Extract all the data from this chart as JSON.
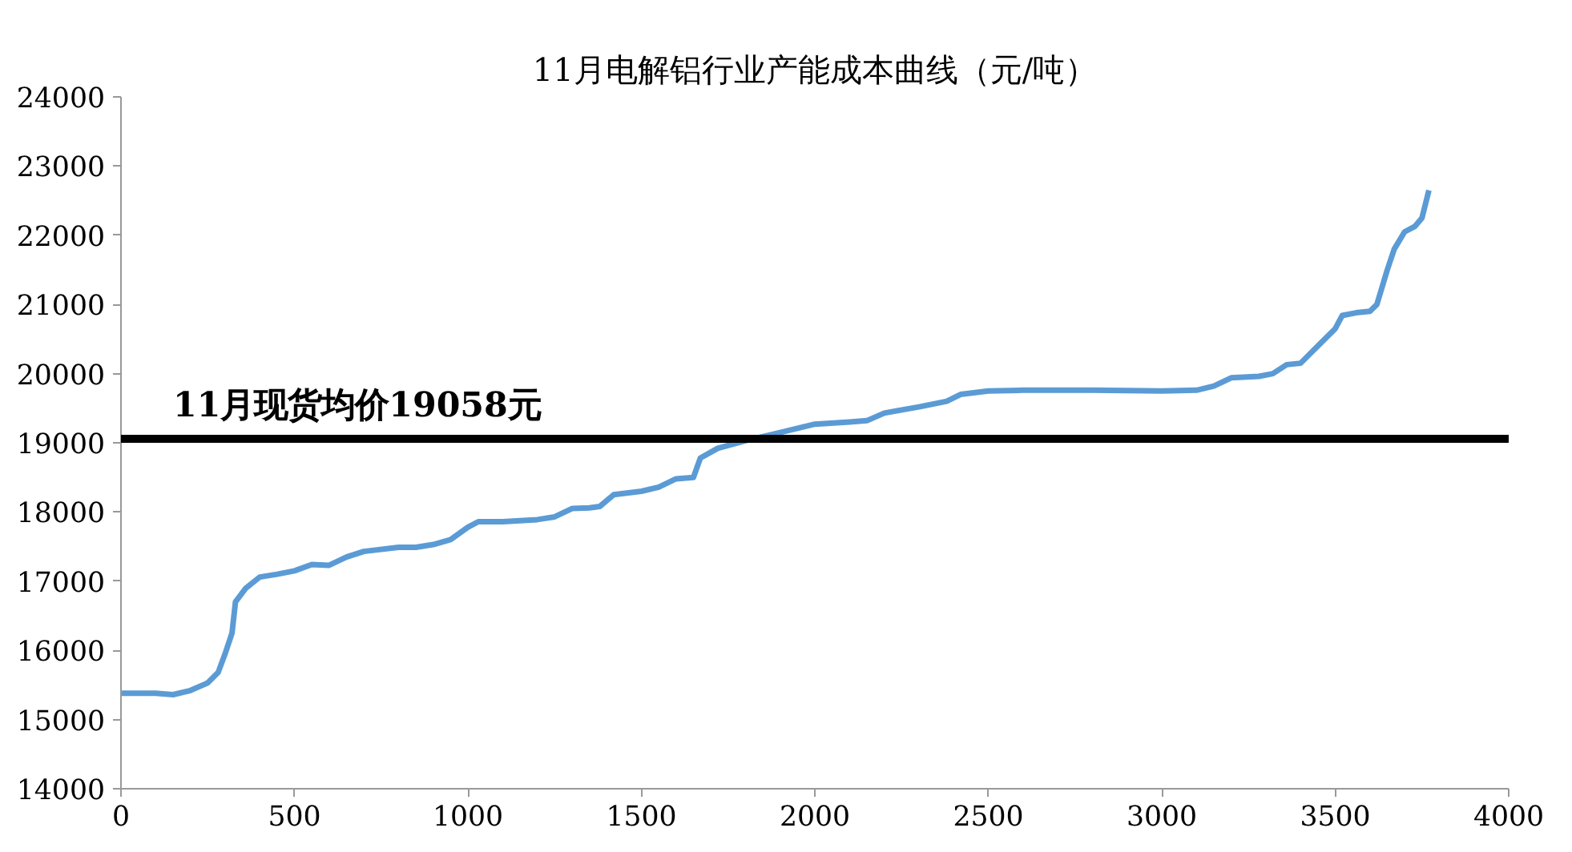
{
  "chart_data": {
    "type": "line",
    "title": "11月电解铝行业产能成本曲线（元/吨）",
    "series": [
      {
        "color": "#5b9bd5",
        "x": [
          0,
          100,
          150,
          200,
          250,
          280,
          300,
          320,
          330,
          360,
          400,
          450,
          500,
          550,
          600,
          650,
          700,
          800,
          850,
          900,
          950,
          1000,
          1030,
          1100,
          1200,
          1250,
          1300,
          1350,
          1380,
          1420,
          1500,
          1550,
          1600,
          1650,
          1670,
          1720,
          1800,
          1900,
          2000,
          2100,
          2150,
          2200,
          2300,
          2380,
          2420,
          2500,
          2600,
          2800,
          3000,
          3100,
          3150,
          3200,
          3280,
          3320,
          3360,
          3400,
          3450,
          3500,
          3520,
          3560,
          3600,
          3620,
          3650,
          3670,
          3700,
          3730,
          3750,
          3770
        ],
        "values": [
          15380,
          15380,
          15360,
          15420,
          15530,
          15680,
          15950,
          16250,
          16700,
          16900,
          17060,
          17100,
          17150,
          17240,
          17230,
          17350,
          17430,
          17490,
          17490,
          17530,
          17600,
          17780,
          17860,
          17860,
          17890,
          17930,
          18050,
          18060,
          18080,
          18250,
          18300,
          18360,
          18480,
          18500,
          18780,
          18920,
          19030,
          19150,
          19270,
          19300,
          19320,
          19430,
          19520,
          19600,
          19700,
          19750,
          19760,
          19760,
          19750,
          19760,
          19820,
          19940,
          19960,
          20000,
          20130,
          20150,
          20400,
          20650,
          20840,
          20880,
          20900,
          21000,
          21500,
          21800,
          22050,
          22130,
          22250,
          22650
        ]
      }
    ],
    "xlim": [
      0,
      4000
    ],
    "xticks": [
      0,
      500,
      1000,
      1500,
      2000,
      2500,
      3000,
      3500,
      4000
    ],
    "ylim": [
      14000,
      24000
    ],
    "yticks": [
      14000,
      15000,
      16000,
      17000,
      18000,
      19000,
      20000,
      21000,
      22000,
      23000,
      24000
    ],
    "ref_lines": [
      {
        "axis": "y",
        "value": 19058,
        "label": "11月现货均价19058元",
        "color": "#000000"
      }
    ],
    "grid": false
  }
}
